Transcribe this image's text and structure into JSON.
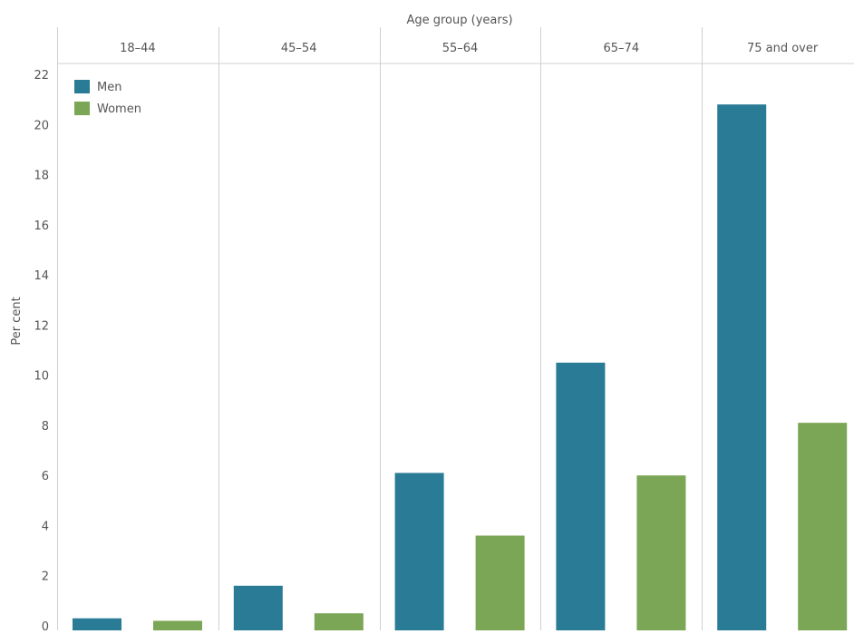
{
  "chart_data": {
    "type": "bar",
    "title": "",
    "xlabel": "Age group (years)",
    "ylabel": "Per cent",
    "ylim": [
      0,
      22
    ],
    "yticks": [
      "0",
      "2",
      "4",
      "6",
      "8",
      "10",
      "12",
      "14",
      "16",
      "18",
      "20",
      "22"
    ],
    "grid": false,
    "legend_position": "top-left",
    "categories": [
      "18–44",
      "45–54",
      "55–64",
      "65–74",
      "75 and over"
    ],
    "series": [
      {
        "name": "Men",
        "color": "#2a7b96",
        "values": [
          0.3,
          1.6,
          6.1,
          10.5,
          20.8
        ]
      },
      {
        "name": "Women",
        "color": "#7ba655",
        "values": [
          0.2,
          0.5,
          3.6,
          6.0,
          8.1
        ]
      }
    ]
  }
}
